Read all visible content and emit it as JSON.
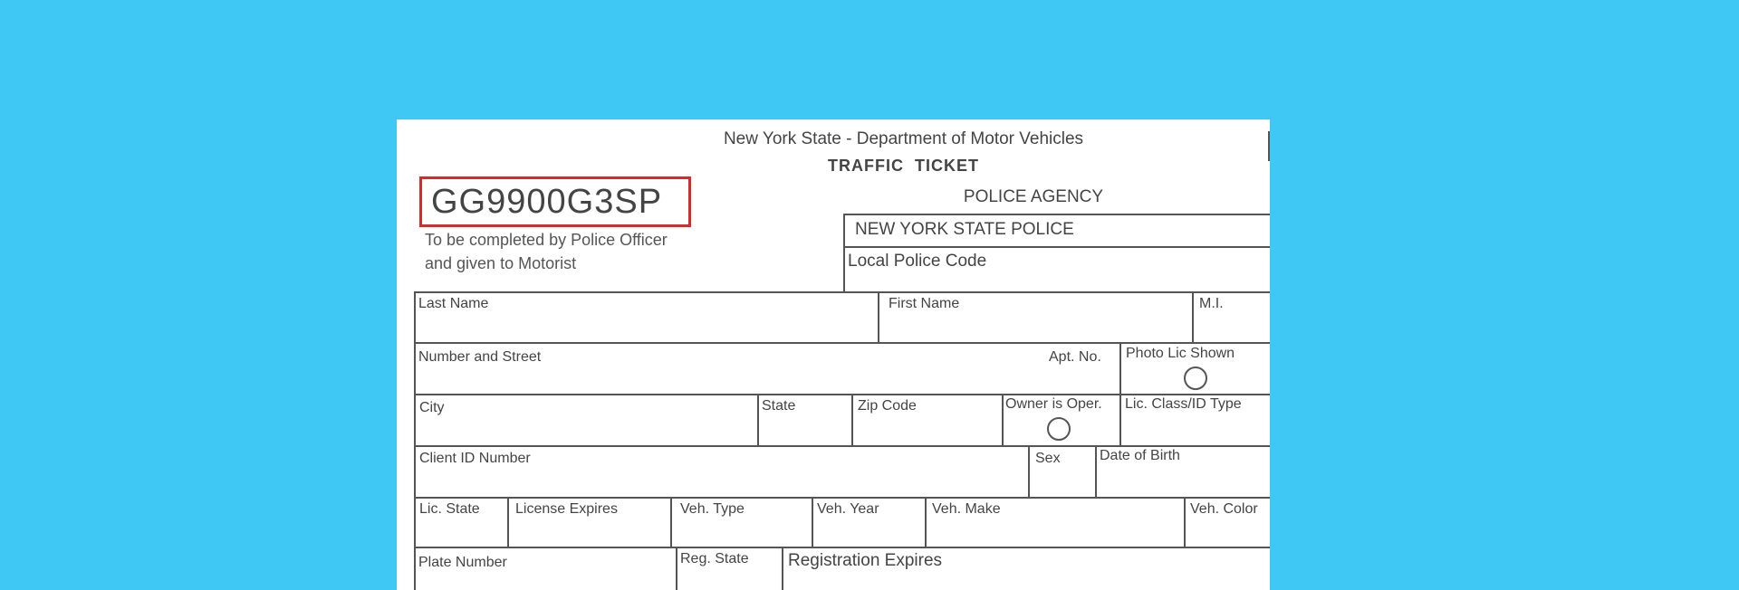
{
  "header": {
    "agency_line": "New York State - Department of Motor Vehicles",
    "title": "TRAFFIC  TICKET"
  },
  "ticket_number": "GG9900G3SP",
  "highlight_color": "#d62b2b",
  "instructions": [
    "To be completed by Police Officer",
    "and given to Motorist"
  ],
  "police_agency": {
    "heading": "POLICE AGENCY",
    "name": "NEW YORK STATE POLICE",
    "local_code_label": "Local Police Code"
  },
  "fields": {
    "last_name": "Last Name",
    "first_name": "First Name",
    "mi": "M.I.",
    "number_street": "Number and Street",
    "apt_no": "Apt. No.",
    "photo_lic_shown": "Photo Lic Shown",
    "city": "City",
    "state": "State",
    "zip_code": "Zip Code",
    "owner_is_oper": "Owner is Oper.",
    "lic_class": "Lic. Class/ID Type",
    "client_id": "Client ID Number",
    "sex": "Sex",
    "dob": "Date of Birth",
    "lic_state": "Lic. State",
    "license_expires": "License Expires",
    "veh_type": "Veh. Type",
    "veh_year": "Veh. Year",
    "veh_make": "Veh. Make",
    "veh_color": "Veh. Color",
    "plate_number": "Plate Number",
    "reg_state": "Reg. State",
    "registration_expires": "Registration Expires"
  }
}
